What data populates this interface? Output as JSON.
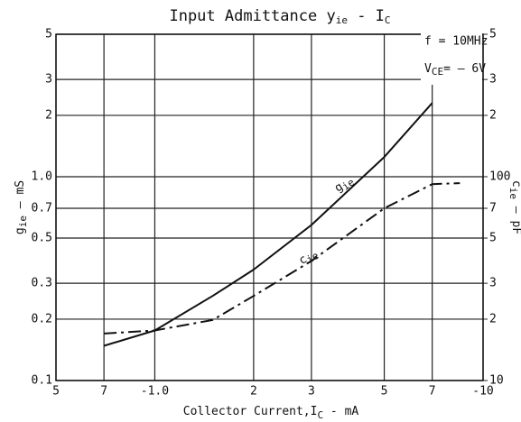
{
  "chart_data": {
    "type": "line",
    "title": [
      "Input Admittance y",
      "ie",
      " - I",
      "C"
    ],
    "x_label": [
      "Collector Current,I",
      "C",
      " - mA"
    ],
    "y_label": [
      "g",
      "ie",
      " — mS"
    ],
    "y2_label": [
      "c",
      "ie",
      " — pF"
    ],
    "annotations": [
      [
        "f = 10MHz"
      ],
      [
        "V",
        "CE",
        "= — 6V"
      ]
    ],
    "xscale": "log",
    "yscale": "log",
    "y2scale": "log",
    "grid": true,
    "xlim": [
      0.5,
      10
    ],
    "ylim": [
      0.1,
      5
    ],
    "y2lim": [
      10,
      500
    ],
    "xticks": [
      {
        "value": 0.5,
        "label": "5"
      },
      {
        "value": 0.7,
        "label": "7"
      },
      {
        "value": 1,
        "label": "-1.0"
      },
      2,
      3,
      5,
      7,
      {
        "value": 10,
        "label": "-10"
      }
    ],
    "yticks": [
      0.1,
      0.2,
      0.3,
      0.5,
      0.7,
      {
        "value": 1,
        "label": "1.0"
      },
      2,
      3,
      5
    ],
    "y2ticks": [
      10,
      {
        "value": 20,
        "label": "2"
      },
      {
        "value": 30,
        "label": "3"
      },
      {
        "value": 50,
        "label": "5"
      },
      {
        "value": 70,
        "label": "7"
      },
      100,
      {
        "value": 200,
        "label": "2"
      },
      {
        "value": 300,
        "label": "3"
      },
      {
        "value": 500,
        "label": "5"
      }
    ],
    "series": [
      {
        "name": [
          "g",
          "ie"
        ],
        "color": "#111",
        "dash": "solid",
        "x": [
          0.7,
          1,
          1.5,
          2,
          3,
          5,
          7
        ],
        "values": [
          0.148,
          0.176,
          0.26,
          0.35,
          0.58,
          1.25,
          2.3
        ]
      },
      {
        "name": [
          "c",
          "ie"
        ],
        "color": "#111",
        "dash": "dashdot",
        "axis": "y2",
        "x": [
          0.7,
          1,
          1.5,
          2,
          3,
          5,
          7,
          8.5
        ],
        "values": [
          17,
          17.6,
          19.8,
          26,
          38.6,
          70,
          92,
          93
        ]
      }
    ]
  }
}
